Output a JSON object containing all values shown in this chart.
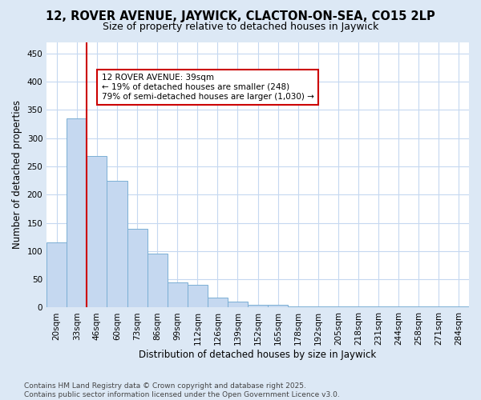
{
  "title1": "12, ROVER AVENUE, JAYWICK, CLACTON-ON-SEA, CO15 2LP",
  "title2": "Size of property relative to detached houses in Jaywick",
  "xlabel": "Distribution of detached houses by size in Jaywick",
  "ylabel": "Number of detached properties",
  "categories": [
    "20sqm",
    "33sqm",
    "46sqm",
    "60sqm",
    "73sqm",
    "86sqm",
    "99sqm",
    "112sqm",
    "126sqm",
    "139sqm",
    "152sqm",
    "165sqm",
    "178sqm",
    "192sqm",
    "205sqm",
    "218sqm",
    "231sqm",
    "244sqm",
    "258sqm",
    "271sqm",
    "284sqm"
  ],
  "values": [
    115,
    335,
    268,
    225,
    140,
    95,
    45,
    40,
    18,
    10,
    5,
    5,
    2,
    2,
    2,
    2,
    2,
    2,
    2,
    2,
    2
  ],
  "bar_color": "#c5d8f0",
  "bar_edge_color": "#7bafd4",
  "red_line_index": 1,
  "annotation_text": "12 ROVER AVENUE: 39sqm\n← 19% of detached houses are smaller (248)\n79% of semi-detached houses are larger (1,030) →",
  "annotation_box_color": "#ffffff",
  "annotation_box_edge_color": "#cc0000",
  "ylim": [
    0,
    470
  ],
  "yticks": [
    0,
    50,
    100,
    150,
    200,
    250,
    300,
    350,
    400,
    450
  ],
  "footer": "Contains HM Land Registry data © Crown copyright and database right 2025.\nContains public sector information licensed under the Open Government Licence v3.0.",
  "fig_bg_color": "#dce8f5",
  "plot_bg_color": "#ffffff",
  "grid_color": "#c5d8f0",
  "title_fontsize": 10.5,
  "subtitle_fontsize": 9,
  "axis_label_fontsize": 8.5,
  "tick_fontsize": 7.5,
  "annotation_fontsize": 7.5,
  "footer_fontsize": 6.5
}
